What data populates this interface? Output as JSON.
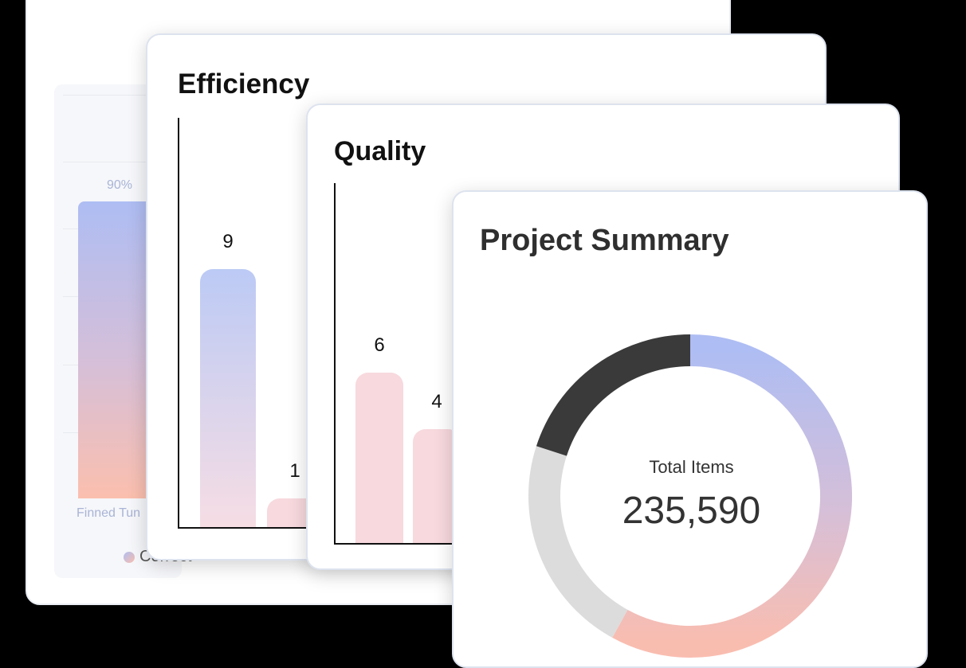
{
  "back_card": {
    "bar_value_label": "90%",
    "category_label": "Finned Tun",
    "legend_label": "Correct"
  },
  "efficiency": {
    "title": "Efficiency",
    "chart_data": {
      "type": "bar",
      "title": "Efficiency",
      "values": [
        9,
        1
      ],
      "data_labels": [
        "9",
        "1"
      ],
      "ylim": [
        0,
        10
      ]
    }
  },
  "quality": {
    "title": "Quality",
    "chart_data": {
      "type": "bar",
      "title": "Quality",
      "values": [
        6,
        4
      ],
      "data_labels": [
        "6",
        "4"
      ],
      "ylim": [
        0,
        10
      ]
    }
  },
  "summary": {
    "title": "Project Summary",
    "donut_caption": "Total Items",
    "donut_value": "235,590",
    "donut_segments_fraction": [
      0.58,
      0.22,
      0.2
    ],
    "donut_colors": [
      "#aebdf3",
      "#dcdcdc",
      "#3a3a3a"
    ]
  }
}
